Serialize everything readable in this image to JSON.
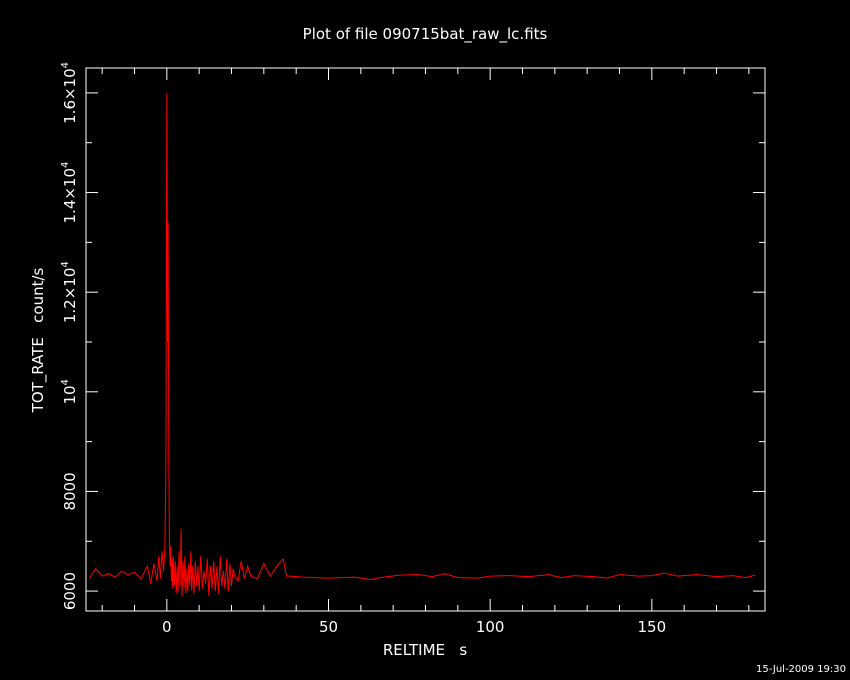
{
  "chart_data": {
    "type": "line",
    "title": "Plot of file 090715bat_raw_lc.fits",
    "xlabel": "RELTIME   s",
    "ylabel": "TOT_RATE   count/s",
    "xlim": [
      -25,
      185
    ],
    "ylim": [
      5600,
      16500
    ],
    "x_ticks": [
      {
        "value": 0,
        "label": "0"
      },
      {
        "value": 50,
        "label": "50"
      },
      {
        "value": 100,
        "label": "100"
      },
      {
        "value": 150,
        "label": "150"
      }
    ],
    "y_ticks": [
      {
        "value": 6000,
        "label": "6000"
      },
      {
        "value": 8000,
        "label": "8000"
      },
      {
        "value": 10000,
        "base": "10",
        "exp": "4"
      },
      {
        "value": 12000,
        "base": "1.2×10",
        "exp": "4"
      },
      {
        "value": 14000,
        "base": "1.4×10",
        "exp": "4"
      },
      {
        "value": 16000,
        "base": "1.6×10",
        "exp": "4"
      }
    ],
    "grid": false,
    "line_color": "#ff0000",
    "axis_color": "#ffffff",
    "background": "#000000",
    "series": [
      {
        "x": [
          -24,
          -22,
          -20,
          -18,
          -16,
          -14,
          -12,
          -10,
          -8,
          -6,
          -5,
          -4,
          -3,
          -2.5,
          -2,
          -1.5,
          -1,
          -0.6,
          -0.3,
          0,
          0.2,
          0.4,
          0.6,
          0.8,
          1,
          1.2,
          1.4,
          1.6,
          1.8,
          2,
          2.3,
          2.6,
          2.9,
          3.2,
          3.5,
          3.8,
          4.1,
          4.4,
          4.7,
          5,
          5.3,
          5.6,
          5.9,
          6.2,
          6.5,
          6.8,
          7.1,
          7.4,
          7.7,
          8,
          8.4,
          8.8,
          9.2,
          9.6,
          10,
          10.5,
          11,
          11.5,
          12,
          12.5,
          13,
          13.5,
          14,
          14.5,
          15,
          15.5,
          16,
          16.5,
          17,
          17.5,
          18,
          18.5,
          19,
          19.5,
          20,
          20.5,
          21,
          22,
          23,
          24,
          25,
          26,
          28,
          30,
          32,
          34,
          36,
          37,
          38,
          42,
          50,
          58,
          63,
          66,
          72,
          78,
          82,
          86,
          90,
          96,
          100,
          106,
          112,
          118,
          122,
          126,
          132,
          136,
          140,
          146,
          150,
          154,
          158,
          164,
          170,
          175,
          179,
          182
        ],
        "y": [
          6250,
          6450,
          6300,
          6350,
          6280,
          6400,
          6320,
          6380,
          6250,
          6500,
          6150,
          6550,
          6200,
          6700,
          6250,
          6800,
          6400,
          6900,
          8500,
          16000,
          11000,
          13400,
          9000,
          7000,
          6500,
          6900,
          6200,
          6650,
          6050,
          6700,
          6100,
          6600,
          5950,
          6500,
          6000,
          6800,
          6100,
          7250,
          5900,
          6600,
          6050,
          6700,
          5950,
          6450,
          6000,
          6550,
          6100,
          6800,
          6000,
          6500,
          5950,
          6600,
          6100,
          6500,
          6000,
          6700,
          6050,
          6400,
          6150,
          6650,
          5900,
          6500,
          6050,
          6600,
          6000,
          6500,
          5950,
          6700,
          6100,
          6400,
          6050,
          6650,
          6000,
          6550,
          6100,
          6450,
          6300,
          6200,
          6600,
          6250,
          6500,
          6300,
          6250,
          6550,
          6300,
          6500,
          6650,
          6300,
          6300,
          6280,
          6260,
          6280,
          6230,
          6270,
          6320,
          6330,
          6290,
          6350,
          6270,
          6260,
          6300,
          6310,
          6290,
          6330,
          6270,
          6310,
          6290,
          6260,
          6330,
          6300,
          6310,
          6360,
          6300,
          6330,
          6290,
          6310,
          6270,
          6320
        ]
      }
    ]
  },
  "footer": {
    "timestamp": "15-Jul-2009 19:30"
  }
}
